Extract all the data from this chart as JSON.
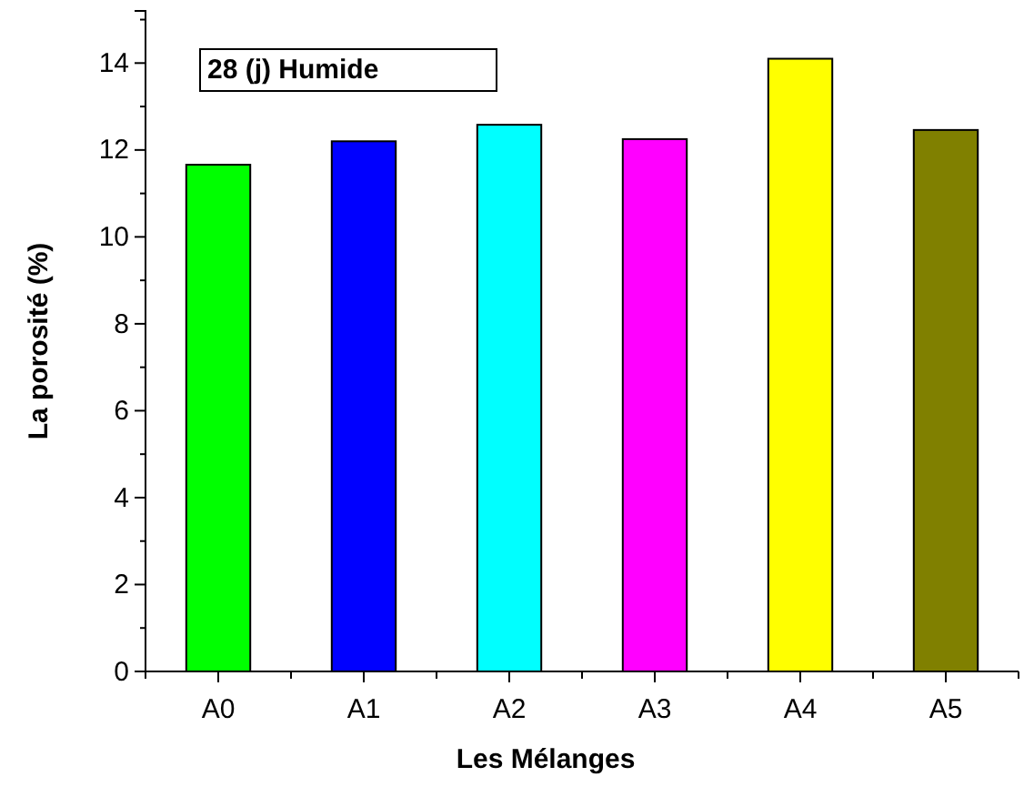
{
  "chart_data": {
    "type": "bar",
    "xlabel": "Les Mélanges",
    "ylabel": "La porosité (%)",
    "annotations": [
      "28 (j)  Humide"
    ],
    "categories": [
      "A0",
      "A1",
      "A2",
      "A3",
      "A4",
      "A5"
    ],
    "values": [
      11.66,
      12.2,
      12.58,
      12.25,
      14.1,
      12.46
    ],
    "colors": [
      "#00ff00",
      "#0000ff",
      "#00ffff",
      "#ff00ff",
      "#ffff00",
      "#808000"
    ],
    "ylim": [
      0,
      15.2
    ],
    "yticks": [
      0,
      2,
      4,
      6,
      8,
      10,
      12,
      14
    ],
    "grid": false
  }
}
